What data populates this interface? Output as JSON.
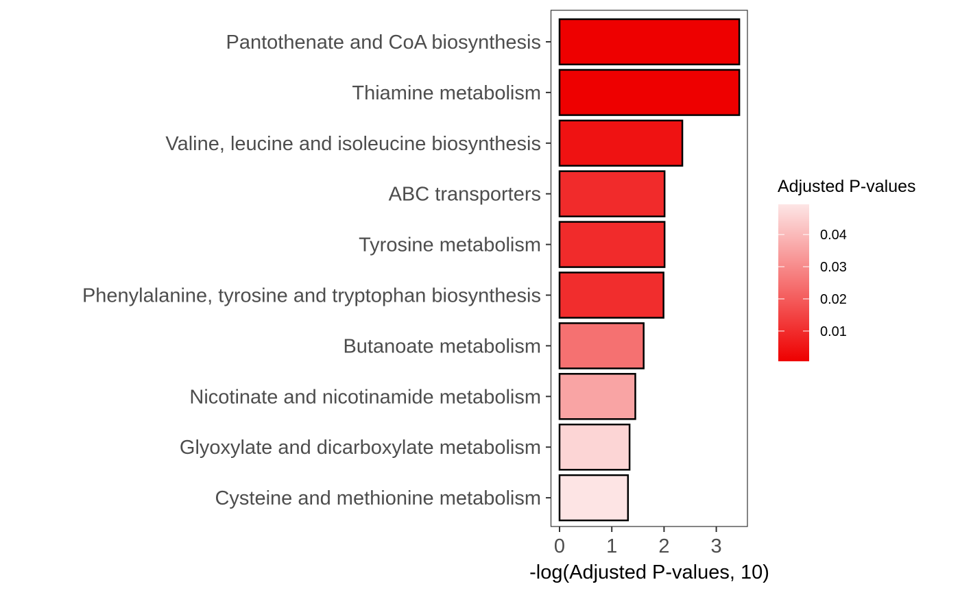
{
  "chart_data": {
    "type": "bar",
    "orientation": "horizontal",
    "title": "",
    "xlabel": "-log(Adjusted P-values, 10)",
    "ylabel": "",
    "xlim": [
      -0.17,
      3.6
    ],
    "xticks": [
      0,
      1,
      2,
      3
    ],
    "grid": false,
    "categories": [
      "Pantothenate and CoA biosynthesis",
      "Thiamine metabolism",
      "Valine, leucine and isoleucine biosynthesis",
      "ABC transporters",
      "Tyrosine metabolism",
      "Phenylalanine, tyrosine and tryptophan biosynthesis",
      "Butanoate metabolism",
      "Nicotinate and nicotinamide metabolism",
      "Glyoxylate and dicarboxylate metabolism",
      "Cysteine and methionine metabolism"
    ],
    "values": [
      3.44,
      3.44,
      2.35,
      2.01,
      2.01,
      1.99,
      1.61,
      1.45,
      1.34,
      1.31
    ],
    "color_legend": {
      "title": "Adjusted P-values",
      "placement": "right",
      "range": [
        0.0006,
        0.0494
      ],
      "ticks": [
        0.01,
        0.02,
        0.03,
        0.04
      ],
      "tick_labels": [
        "0.01",
        "0.02",
        "0.03",
        "0.04"
      ],
      "low_color": "#EE0000",
      "high_color": "#FDE6E6"
    }
  }
}
